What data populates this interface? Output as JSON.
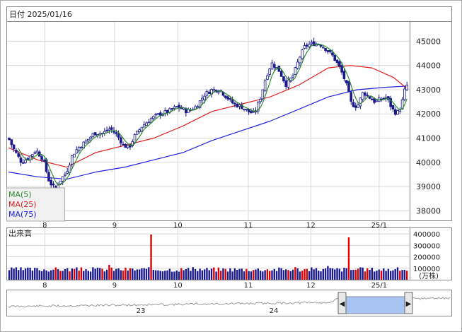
{
  "header": {
    "title": "日付 2025/01/16"
  },
  "price_panel": {
    "y_ticks": [
      "45000",
      "44000",
      "43000",
      "42000",
      "41000",
      "40000",
      "39000",
      "38000"
    ],
    "x_ticks": [
      "8",
      "9",
      "10",
      "11",
      "12",
      "25/1"
    ]
  },
  "legend": {
    "ma5": "MA(5)",
    "ma25": "MA(25)",
    "ma75": "MA(75)"
  },
  "volume_panel": {
    "title": "出来高",
    "y_ticks": [
      "400000",
      "300000",
      "200000",
      "100000"
    ],
    "unit": "(万株)",
    "x_ticks": [
      "8",
      "9",
      "10",
      "11",
      "12",
      "25/1"
    ]
  },
  "navigator": {
    "labels": [
      "23",
      "24"
    ],
    "left_handle": "◀",
    "right_handle": "▶"
  },
  "colors": {
    "up_candle": "#ffffff",
    "down_candle": "#1a1a8c",
    "ma5": "#2e8b2e",
    "ma25": "#e02020",
    "ma75": "#2020e0",
    "volume_normal": "#1a1a8c",
    "volume_high": "#e00000",
    "grid": "#d8d8d8"
  },
  "chart_data": {
    "type": "candlestick",
    "ylim": [
      37600,
      45800
    ],
    "anchors": [
      {
        "x": 0,
        "y": 41000
      },
      {
        "x": 8,
        "y": 40500
      },
      {
        "x": 18,
        "y": 40000
      },
      {
        "x": 28,
        "y": 40200
      },
      {
        "x": 38,
        "y": 40500
      },
      {
        "x": 48,
        "y": 40100
      },
      {
        "x": 56,
        "y": 39200
      },
      {
        "x": 64,
        "y": 38900
      },
      {
        "x": 72,
        "y": 39300
      },
      {
        "x": 80,
        "y": 39600
      },
      {
        "x": 88,
        "y": 40300
      },
      {
        "x": 96,
        "y": 40600
      },
      {
        "x": 108,
        "y": 40900
      },
      {
        "x": 118,
        "y": 41200
      },
      {
        "x": 130,
        "y": 41200
      },
      {
        "x": 140,
        "y": 41400
      },
      {
        "x": 150,
        "y": 41100
      },
      {
        "x": 158,
        "y": 40700
      },
      {
        "x": 166,
        "y": 40600
      },
      {
        "x": 174,
        "y": 41100
      },
      {
        "x": 184,
        "y": 41500
      },
      {
        "x": 196,
        "y": 41800
      },
      {
        "x": 208,
        "y": 42000
      },
      {
        "x": 220,
        "y": 42100
      },
      {
        "x": 232,
        "y": 42300
      },
      {
        "x": 246,
        "y": 42100
      },
      {
        "x": 258,
        "y": 42300
      },
      {
        "x": 270,
        "y": 42800
      },
      {
        "x": 280,
        "y": 43000
      },
      {
        "x": 290,
        "y": 43000
      },
      {
        "x": 300,
        "y": 42700
      },
      {
        "x": 310,
        "y": 42400
      },
      {
        "x": 320,
        "y": 42300
      },
      {
        "x": 330,
        "y": 42100
      },
      {
        "x": 338,
        "y": 42000
      },
      {
        "x": 346,
        "y": 42600
      },
      {
        "x": 354,
        "y": 43500
      },
      {
        "x": 362,
        "y": 44100
      },
      {
        "x": 372,
        "y": 43800
      },
      {
        "x": 382,
        "y": 43200
      },
      {
        "x": 392,
        "y": 43600
      },
      {
        "x": 400,
        "y": 44300
      },
      {
        "x": 408,
        "y": 44800
      },
      {
        "x": 418,
        "y": 44900
      },
      {
        "x": 428,
        "y": 44900
      },
      {
        "x": 436,
        "y": 44700
      },
      {
        "x": 446,
        "y": 44400
      },
      {
        "x": 456,
        "y": 43900
      },
      {
        "x": 464,
        "y": 43300
      },
      {
        "x": 472,
        "y": 42400
      },
      {
        "x": 480,
        "y": 42300
      },
      {
        "x": 488,
        "y": 42900
      },
      {
        "x": 496,
        "y": 42700
      },
      {
        "x": 504,
        "y": 42500
      },
      {
        "x": 512,
        "y": 42600
      },
      {
        "x": 520,
        "y": 42700
      },
      {
        "x": 528,
        "y": 42200
      },
      {
        "x": 534,
        "y": 42000
      },
      {
        "x": 540,
        "y": 42300
      },
      {
        "x": 546,
        "y": 43100
      },
      {
        "x": 550,
        "y": 43250
      }
    ],
    "ma25": [
      {
        "x": 0,
        "y": 40600
      },
      {
        "x": 40,
        "y": 40100
      },
      {
        "x": 80,
        "y": 39800
      },
      {
        "x": 120,
        "y": 40400
      },
      {
        "x": 160,
        "y": 40700
      },
      {
        "x": 200,
        "y": 41000
      },
      {
        "x": 240,
        "y": 41500
      },
      {
        "x": 280,
        "y": 42100
      },
      {
        "x": 320,
        "y": 42400
      },
      {
        "x": 360,
        "y": 42700
      },
      {
        "x": 400,
        "y": 43200
      },
      {
        "x": 440,
        "y": 43900
      },
      {
        "x": 470,
        "y": 44000
      },
      {
        "x": 500,
        "y": 43900
      },
      {
        "x": 530,
        "y": 43500
      },
      {
        "x": 550,
        "y": 43000
      }
    ],
    "ma75": [
      {
        "x": 0,
        "y": 39600
      },
      {
        "x": 40,
        "y": 39400
      },
      {
        "x": 80,
        "y": 39300
      },
      {
        "x": 120,
        "y": 39600
      },
      {
        "x": 160,
        "y": 39800
      },
      {
        "x": 200,
        "y": 40100
      },
      {
        "x": 240,
        "y": 40400
      },
      {
        "x": 280,
        "y": 40900
      },
      {
        "x": 320,
        "y": 41300
      },
      {
        "x": 360,
        "y": 41700
      },
      {
        "x": 400,
        "y": 42200
      },
      {
        "x": 440,
        "y": 42700
      },
      {
        "x": 480,
        "y": 43000
      },
      {
        "x": 520,
        "y": 43100
      },
      {
        "x": 550,
        "y": 43150
      }
    ],
    "volume": {
      "ylim": [
        0,
        450000
      ],
      "base": 90000,
      "spikes": [
        {
          "x": 196,
          "value": 395000,
          "high": true
        },
        {
          "x": 468,
          "value": 370000,
          "high": true
        },
        {
          "x": 138,
          "value": 130000,
          "high": true
        },
        {
          "x": 394,
          "value": 110000,
          "high": true
        },
        {
          "x": 440,
          "value": 120000,
          "high": false
        }
      ]
    }
  }
}
